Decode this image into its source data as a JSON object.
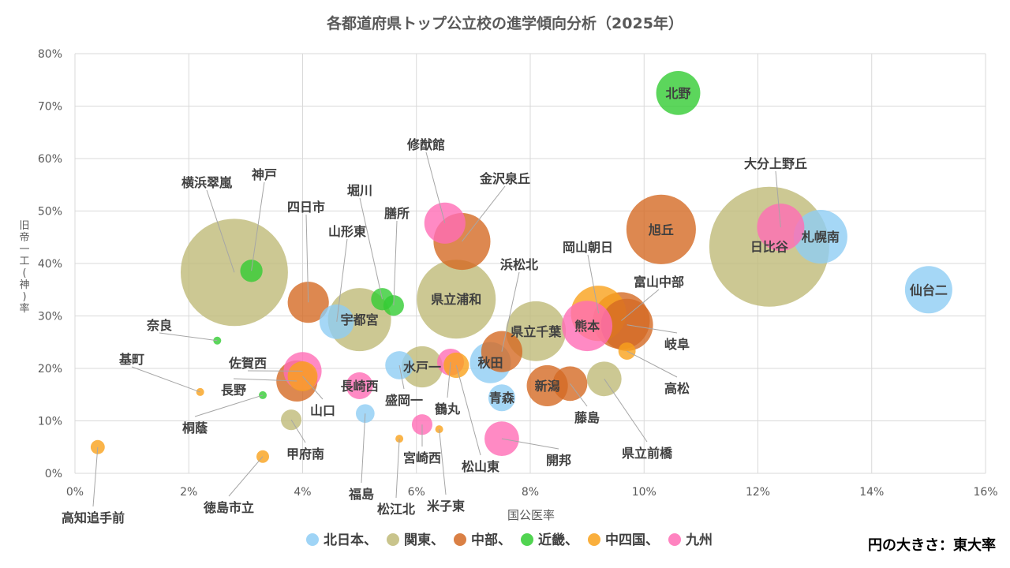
{
  "chart_data": {
    "type": "bubble",
    "title": "各都道府県トップ公立校の進学傾向分析（2025年）",
    "xlabel": "国公医率",
    "ylabel": "旧帝一工(神)率",
    "size_note": "円の大きさ：東大率",
    "xlim": [
      0,
      16
    ],
    "ylim": [
      0,
      80
    ],
    "x_ticks": [
      "0%",
      "2%",
      "4%",
      "6%",
      "8%",
      "10%",
      "12%",
      "14%",
      "16%"
    ],
    "y_ticks": [
      "0%",
      "10%",
      "20%",
      "30%",
      "40%",
      "50%",
      "60%",
      "70%",
      "80%"
    ],
    "grid": true,
    "legend_position": "bottom",
    "regions": [
      {
        "name": "北日本",
        "label": "北日本、",
        "color": "#8ecdf4"
      },
      {
        "name": "関東",
        "label": "関東、",
        "color": "#bfba78"
      },
      {
        "name": "中部",
        "label": "中部、",
        "color": "#d46a24"
      },
      {
        "name": "近畿",
        "label": "近畿、",
        "color": "#33cc33"
      },
      {
        "name": "中四国",
        "label": "中四国、",
        "color": "#f9a11b"
      },
      {
        "name": "九州",
        "label": "九州",
        "color": "#ff6db5"
      }
    ],
    "points": [
      {
        "name": "仙台二",
        "region": "北日本",
        "x": 15.0,
        "y": 35.0,
        "size": 9.0
      },
      {
        "name": "札幌南",
        "region": "北日本",
        "x": 13.1,
        "y": 45.1,
        "size": 11.6
      },
      {
        "name": "山形東",
        "region": "北日本",
        "x": 4.6,
        "y": 28.9,
        "size": 4.8
      },
      {
        "name": "盛岡一",
        "region": "北日本",
        "x": 5.7,
        "y": 20.6,
        "size": 3.2
      },
      {
        "name": "秋田",
        "region": "北日本",
        "x": 7.3,
        "y": 21.1,
        "size": 6.8
      },
      {
        "name": "青森",
        "region": "北日本",
        "x": 7.5,
        "y": 14.4,
        "size": 2.9
      },
      {
        "name": "福島",
        "region": "北日本",
        "x": 5.1,
        "y": 11.4,
        "size": 1.4
      },
      {
        "name": "日比谷",
        "region": "関東",
        "x": 12.2,
        "y": 43.2,
        "size": 57.8
      },
      {
        "name": "横浜翠嵐",
        "region": "関東",
        "x": 2.8,
        "y": 38.3,
        "size": 46.2
      },
      {
        "name": "県立浦和",
        "region": "関東",
        "x": 6.7,
        "y": 33.2,
        "size": 25.0
      },
      {
        "name": "宇都宮",
        "region": "関東",
        "x": 5.0,
        "y": 29.3,
        "size": 16.0
      },
      {
        "name": "県立千葉",
        "region": "関東",
        "x": 8.1,
        "y": 27.1,
        "size": 14.4
      },
      {
        "name": "水戸一",
        "region": "関東",
        "x": 6.1,
        "y": 20.3,
        "size": 6.8
      },
      {
        "name": "県立前橋",
        "region": "関東",
        "x": 9.3,
        "y": 18.0,
        "size": 4.8
      },
      {
        "name": "甲府南",
        "region": "関東",
        "x": 3.8,
        "y": 10.2,
        "size": 1.7
      },
      {
        "name": "旭丘",
        "region": "中部",
        "x": 10.3,
        "y": 46.5,
        "size": 19.4
      },
      {
        "name": "金沢泉丘",
        "region": "中部",
        "x": 6.8,
        "y": 44.2,
        "size": 13.0
      },
      {
        "name": "四日市",
        "region": "中部",
        "x": 4.1,
        "y": 32.6,
        "size": 6.8
      },
      {
        "name": "富山中部",
        "region": "中部",
        "x": 9.6,
        "y": 29.1,
        "size": 13.0
      },
      {
        "name": "岐阜",
        "region": "中部",
        "x": 9.7,
        "y": 28.3,
        "size": 10.9
      },
      {
        "name": "浜松北",
        "region": "中部",
        "x": 7.5,
        "y": 23.2,
        "size": 6.8
      },
      {
        "name": "新潟",
        "region": "中部",
        "x": 8.3,
        "y": 16.7,
        "size": 6.8
      },
      {
        "name": "藤島",
        "region": "中部",
        "x": 8.7,
        "y": 17.1,
        "size": 4.8
      },
      {
        "name": "長野",
        "region": "中部",
        "x": 3.9,
        "y": 17.6,
        "size": 6.8
      },
      {
        "name": "北野",
        "region": "近畿",
        "x": 10.6,
        "y": 72.5,
        "size": 7.8
      },
      {
        "name": "神戸",
        "region": "近畿",
        "x": 3.1,
        "y": 38.6,
        "size": 2.0
      },
      {
        "name": "堀川",
        "region": "近畿",
        "x": 5.4,
        "y": 33.2,
        "size": 2.0
      },
      {
        "name": "膳所",
        "region": "近畿",
        "x": 5.6,
        "y": 32.0,
        "size": 1.7
      },
      {
        "name": "奈良",
        "region": "近畿",
        "x": 2.5,
        "y": 25.3,
        "size": 0.25
      },
      {
        "name": "桐蔭",
        "region": "近畿",
        "x": 3.3,
        "y": 14.9,
        "size": 0.25
      },
      {
        "name": "岡山朝日",
        "region": "中四国",
        "x": 9.2,
        "y": 30.5,
        "size": 12.3
      },
      {
        "name": "高松",
        "region": "中四国",
        "x": 9.7,
        "y": 23.3,
        "size": 1.2
      },
      {
        "name": "松山東",
        "region": "中四国",
        "x": 6.7,
        "y": 20.6,
        "size": 2.6
      },
      {
        "name": "山口",
        "region": "中四国",
        "x": 4.0,
        "y": 18.5,
        "size": 3.6
      },
      {
        "name": "徳島市立",
        "region": "中四国",
        "x": 3.3,
        "y": 3.2,
        "size": 0.64
      },
      {
        "name": "高知追手前",
        "region": "中四国",
        "x": 0.4,
        "y": 5.0,
        "size": 0.8
      },
      {
        "name": "松江北",
        "region": "中四国",
        "x": 5.7,
        "y": 6.6,
        "size": 0.25
      },
      {
        "name": "米子東",
        "region": "中四国",
        "x": 6.4,
        "y": 8.4,
        "size": 0.25
      },
      {
        "name": "基町",
        "region": "中四国",
        "x": 2.2,
        "y": 15.5,
        "size": 0.25
      },
      {
        "name": "大分上野丘",
        "region": "九州",
        "x": 12.4,
        "y": 46.9,
        "size": 9.0
      },
      {
        "name": "修猷館",
        "region": "九州",
        "x": 6.5,
        "y": 47.7,
        "size": 6.8
      },
      {
        "name": "熊本",
        "region": "九州",
        "x": 9.0,
        "y": 28.1,
        "size": 10.2
      },
      {
        "name": "佐賀西",
        "region": "九州",
        "x": 4.0,
        "y": 19.5,
        "size": 5.8
      },
      {
        "name": "長崎西",
        "region": "九州",
        "x": 5.0,
        "y": 16.7,
        "size": 2.9
      },
      {
        "name": "鶴丸",
        "region": "九州",
        "x": 6.6,
        "y": 21.2,
        "size": 2.9
      },
      {
        "name": "宮崎西",
        "region": "九州",
        "x": 6.1,
        "y": 9.3,
        "size": 1.7
      },
      {
        "name": "開邦",
        "region": "九州",
        "x": 7.5,
        "y": 6.6,
        "size": 4.8
      }
    ]
  }
}
